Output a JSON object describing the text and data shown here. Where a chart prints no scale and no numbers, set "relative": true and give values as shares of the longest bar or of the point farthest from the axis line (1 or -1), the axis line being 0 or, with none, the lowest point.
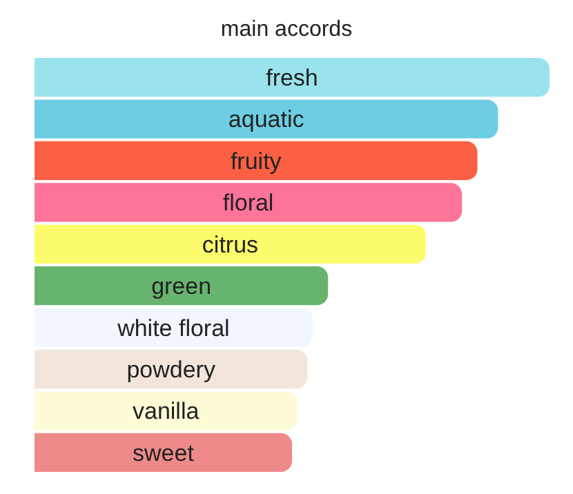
{
  "chart_data": {
    "type": "bar",
    "orientation": "horizontal",
    "relative": true,
    "title": "main accords",
    "categories": [
      "fresh",
      "aquatic",
      "fruity",
      "floral",
      "citrus",
      "green",
      "white floral",
      "powdery",
      "vanilla",
      "sweet"
    ],
    "values": [
      1,
      0.9,
      0.86,
      0.83,
      0.76,
      0.57,
      0.54,
      0.53,
      0.51,
      0.5
    ],
    "colors": [
      "#9ae3ec",
      "#6dcde3",
      "#fc6044",
      "#fe7398",
      "#fcfb6c",
      "#67b46f",
      "#f2f6fd",
      "#f2e6dc",
      "#fefcd6",
      "#ef8a8a"
    ],
    "data_labels": false
  }
}
